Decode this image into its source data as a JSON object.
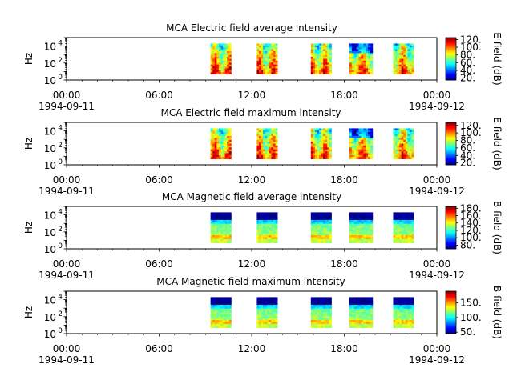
{
  "chart_data": [
    {
      "type": "heatmap",
      "title": "MCA  Electric field average intensity",
      "ylabel": "Hz",
      "yticks": [
        {
          "base": "10",
          "exp": "0"
        },
        {
          "base": "10",
          "exp": "2"
        },
        {
          "base": "10",
          "exp": "4"
        }
      ],
      "y_scale": "log",
      "ylim": [
        1,
        100000
      ],
      "xlim": [
        "1994-09-11 00:00",
        "1994-09-12 00:00"
      ],
      "xticks": [
        "00:00",
        "06:00",
        "12:00",
        "18:00",
        "00:00"
      ],
      "xdates": [
        "1994-09-11",
        "1994-09-12"
      ],
      "colorbar_label": "E field (dB)",
      "colorbar_ticks": [
        "20.",
        "40.",
        "60.",
        "80.",
        "100.",
        "120."
      ],
      "colorbar_range": [
        15,
        125
      ],
      "colormap": "jet",
      "data_intervals": [
        [
          "09:20",
          "10:40"
        ],
        [
          "12:20",
          "13:40"
        ],
        [
          "15:50",
          "17:10"
        ],
        [
          "18:20",
          "19:50"
        ],
        [
          "21:10",
          "22:30"
        ]
      ]
    },
    {
      "type": "heatmap",
      "title": "MCA  Electric field maximum intensity",
      "ylabel": "Hz",
      "yticks": [
        {
          "base": "10",
          "exp": "0"
        },
        {
          "base": "10",
          "exp": "2"
        },
        {
          "base": "10",
          "exp": "4"
        }
      ],
      "y_scale": "log",
      "ylim": [
        1,
        100000
      ],
      "xlim": [
        "1994-09-11 00:00",
        "1994-09-12 00:00"
      ],
      "xticks": [
        "00:00",
        "06:00",
        "12:00",
        "18:00",
        "00:00"
      ],
      "xdates": [
        "1994-09-11",
        "1994-09-12"
      ],
      "colorbar_label": "E field (dB)",
      "colorbar_ticks": [
        "20.",
        "40.",
        "60.",
        "80.",
        "100.",
        "120."
      ],
      "colorbar_range": [
        15,
        128
      ],
      "colormap": "jet",
      "data_intervals": [
        [
          "09:20",
          "10:40"
        ],
        [
          "12:20",
          "13:40"
        ],
        [
          "15:50",
          "17:10"
        ],
        [
          "18:20",
          "19:50"
        ],
        [
          "21:10",
          "22:30"
        ]
      ]
    },
    {
      "type": "heatmap",
      "title": "MCA  Magnetic field average intensity",
      "ylabel": "Hz",
      "yticks": [
        {
          "base": "10",
          "exp": "0"
        },
        {
          "base": "10",
          "exp": "2"
        },
        {
          "base": "10",
          "exp": "4"
        }
      ],
      "y_scale": "log",
      "ylim": [
        1,
        100000
      ],
      "xlim": [
        "1994-09-11 00:00",
        "1994-09-12 00:00"
      ],
      "xticks": [
        "00:00",
        "06:00",
        "12:00",
        "18:00",
        "00:00"
      ],
      "xdates": [
        "1994-09-11",
        "1994-09-12"
      ],
      "colorbar_label": "B field (dB)",
      "colorbar_ticks": [
        "80.",
        "100.",
        "120.",
        "140.",
        "160.",
        "180."
      ],
      "colorbar_range": [
        70,
        185
      ],
      "colormap": "jet",
      "data_intervals": [
        [
          "09:20",
          "10:40"
        ],
        [
          "12:20",
          "13:40"
        ],
        [
          "15:50",
          "17:10"
        ],
        [
          "18:20",
          "19:50"
        ],
        [
          "21:10",
          "22:30"
        ]
      ]
    },
    {
      "type": "heatmap",
      "title": "MCA  Magnetic field maximum intensity",
      "ylabel": "Hz",
      "yticks": [
        {
          "base": "10",
          "exp": "0"
        },
        {
          "base": "10",
          "exp": "2"
        },
        {
          "base": "10",
          "exp": "4"
        }
      ],
      "y_scale": "log",
      "ylim": [
        1,
        100000
      ],
      "xlim": [
        "1994-09-11 00:00",
        "1994-09-12 00:00"
      ],
      "xticks": [
        "00:00",
        "06:00",
        "12:00",
        "18:00",
        "00:00"
      ],
      "xdates": [
        "1994-09-11",
        "1994-09-12"
      ],
      "colorbar_label": "B field (dB)",
      "colorbar_ticks": [
        "50.",
        "100.",
        "150."
      ],
      "colorbar_range": [
        45,
        190
      ],
      "colormap": "jet",
      "data_intervals": [
        [
          "09:20",
          "10:40"
        ],
        [
          "12:20",
          "13:40"
        ],
        [
          "15:50",
          "17:10"
        ],
        [
          "18:20",
          "19:50"
        ],
        [
          "21:10",
          "22:30"
        ]
      ]
    }
  ]
}
